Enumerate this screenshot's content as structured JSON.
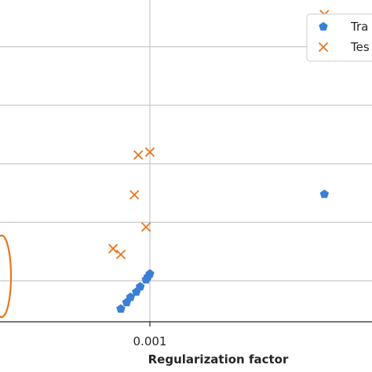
{
  "chart_data": {
    "type": "scatter",
    "xlabel": "Regularization factor",
    "ylabel": "",
    "title": "",
    "xlim": [
      0.0,
      0.004
    ],
    "ylim": [
      0.0,
      5.5
    ],
    "x_ticks": [
      0.001
    ],
    "x_tick_labels": [
      "0.001"
    ],
    "y_ticks": [
      0.7,
      1.7,
      2.7,
      3.7,
      4.7
    ],
    "grid": true,
    "legend_position": "top-right",
    "annotation": "orange ellipse around leftmost points",
    "series": [
      {
        "name": "Tra",
        "marker": "pentagon",
        "color": "#3a7fd5",
        "points": [
          {
            "x": 0.00085,
            "y": 0.22
          },
          {
            "x": 0.00088,
            "y": 0.33
          },
          {
            "x": 0.0009,
            "y": 0.42
          },
          {
            "x": 0.00093,
            "y": 0.51
          },
          {
            "x": 0.00095,
            "y": 0.6
          },
          {
            "x": 0.00098,
            "y": 0.72
          },
          {
            "x": 0.00099,
            "y": 0.77
          },
          {
            "x": 0.001,
            "y": 0.82
          },
          {
            "x": 0.0019,
            "y": 2.18
          }
        ]
      },
      {
        "name": "Tes",
        "marker": "x",
        "color": "#e8761e",
        "points": [
          {
            "x": 0.00081,
            "y": 1.25
          },
          {
            "x": 0.00085,
            "y": 1.15
          },
          {
            "x": 0.00092,
            "y": 2.17
          },
          {
            "x": 0.00094,
            "y": 2.85
          },
          {
            "x": 0.00098,
            "y": 1.62
          },
          {
            "x": 0.001,
            "y": 2.9
          },
          {
            "x": 0.0019,
            "y": 5.25
          }
        ]
      }
    ]
  }
}
